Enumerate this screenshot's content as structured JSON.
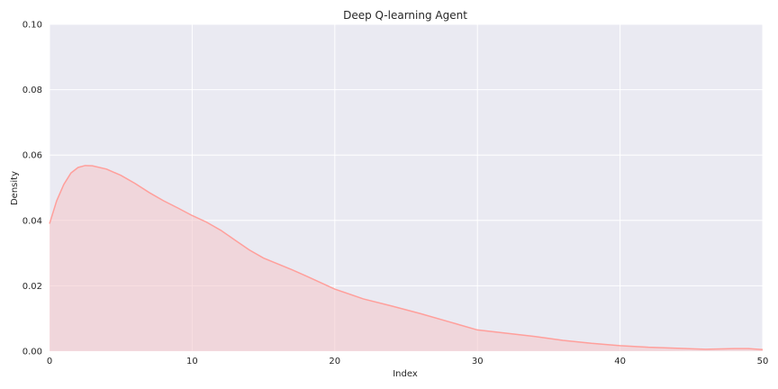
{
  "chart_data": {
    "type": "area",
    "title": "Deep Q-learning Agent",
    "xlabel": "Index",
    "ylabel": "Density",
    "xlim": [
      0,
      50
    ],
    "ylim": [
      0,
      0.1
    ],
    "x_ticks": [
      0,
      10,
      20,
      30,
      40,
      50
    ],
    "x_tick_labels": [
      "0",
      "10",
      "20",
      "30",
      "40",
      "50"
    ],
    "y_ticks": [
      0,
      0.02,
      0.04,
      0.06,
      0.08,
      0.1
    ],
    "y_tick_labels": [
      "0.00",
      "0.02",
      "0.04",
      "0.06",
      "0.08",
      "0.10"
    ],
    "grid": true,
    "colors": {
      "background": "#eaeaf2",
      "line": "#ff9f9b",
      "fill": "#f4c4c9"
    },
    "series": [
      {
        "x": [
          0,
          0.5,
          1,
          1.5,
          2,
          2.5,
          3,
          4,
          5,
          6,
          7,
          8,
          9,
          10,
          11,
          12,
          13,
          14,
          15,
          16,
          17,
          18,
          19,
          20,
          22,
          24,
          26,
          28,
          30,
          32,
          34,
          36,
          38,
          40,
          42,
          44,
          46,
          48,
          49,
          50
        ],
        "y": [
          0.039,
          0.046,
          0.051,
          0.0545,
          0.0562,
          0.0568,
          0.0567,
          0.0557,
          0.0538,
          0.0513,
          0.0485,
          0.046,
          0.0438,
          0.0415,
          0.0395,
          0.037,
          0.034,
          0.031,
          0.0285,
          0.0267,
          0.0249,
          0.023,
          0.021,
          0.019,
          0.016,
          0.0138,
          0.0115,
          0.009,
          0.0065,
          0.0055,
          0.0045,
          0.0033,
          0.0024,
          0.0017,
          0.0012,
          0.0009,
          0.0006,
          0.0008,
          0.0008,
          0.0005
        ]
      }
    ]
  }
}
